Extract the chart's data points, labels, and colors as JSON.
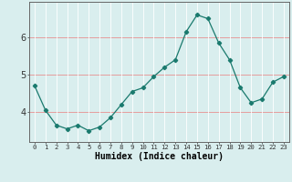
{
  "title": "",
  "xlabel": "Humidex (Indice chaleur)",
  "x": [
    0,
    1,
    2,
    3,
    4,
    5,
    6,
    7,
    8,
    9,
    10,
    11,
    12,
    13,
    14,
    15,
    16,
    17,
    18,
    19,
    20,
    21,
    22,
    23
  ],
  "y": [
    4.7,
    4.05,
    3.65,
    3.55,
    3.65,
    3.5,
    3.6,
    3.85,
    4.2,
    4.55,
    4.65,
    4.95,
    5.2,
    5.4,
    6.15,
    6.6,
    6.5,
    5.85,
    5.4,
    4.65,
    4.25,
    4.35,
    4.8,
    4.95
  ],
  "line_color": "#1a7a6e",
  "marker": "D",
  "marker_size": 2.2,
  "bg_color": "#d9eeee",
  "hgrid_color": "#e89090",
  "vgrid_color": "#ffffff",
  "axis_color": "#666666",
  "tick_color": "#333333",
  "ylim": [
    3.2,
    6.95
  ],
  "yticks": [
    4,
    5,
    6
  ],
  "xlim": [
    -0.5,
    23.5
  ],
  "xlabel_fontsize": 7,
  "tick_fontsize_x": 5.2,
  "tick_fontsize_y": 7
}
